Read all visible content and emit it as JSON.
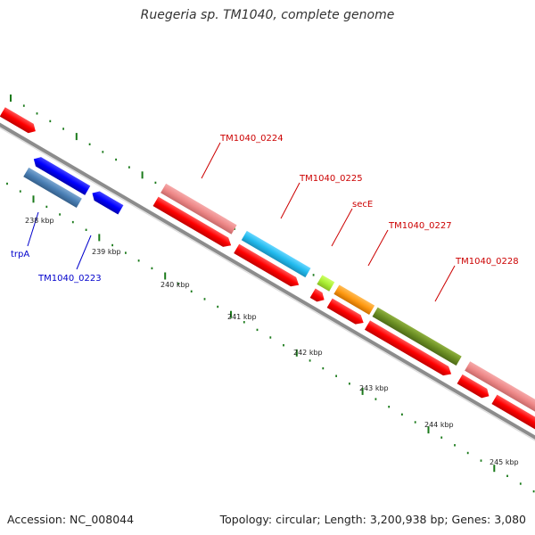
{
  "title": "Ruegeria sp. TM1040, complete genome",
  "footer": {
    "accession": "Accession: NC_008044",
    "topology": "Topology: circular; Length: 3,200,938 bp; Genes: 3,080"
  },
  "scale_labels": [
    "238 kbp",
    "239 kbp",
    "240 kbp",
    "241 kbp",
    "242 kbp",
    "243 kbp",
    "244 kbp",
    "245 kbp"
  ],
  "gene_labels": [
    {
      "text": "trpA",
      "color": "#0000cc"
    },
    {
      "text": "TM1040_0223",
      "color": "#0000cc"
    },
    {
      "text": "TM1040_0224",
      "color": "#cc0000"
    },
    {
      "text": "TM1040_0225",
      "color": "#cc0000"
    },
    {
      "text": "secE",
      "color": "#cc0000"
    },
    {
      "text": "TM1040_0227",
      "color": "#cc0000"
    },
    {
      "text": "TM1040_0228",
      "color": "#cc0000"
    }
  ],
  "colors": {
    "backbone": "#8c8c8c",
    "cds_forward": "#ff0000",
    "cds_reverse": "#0000ff",
    "tick": "#1a7a1a",
    "feature_pink": "#ee8888",
    "feature_cyan": "#22bbee",
    "feature_lime": "#aaee33",
    "feature_orange": "#ff9911",
    "feature_olive": "#6b8e23",
    "feature_steel": "#4a7fb5"
  }
}
